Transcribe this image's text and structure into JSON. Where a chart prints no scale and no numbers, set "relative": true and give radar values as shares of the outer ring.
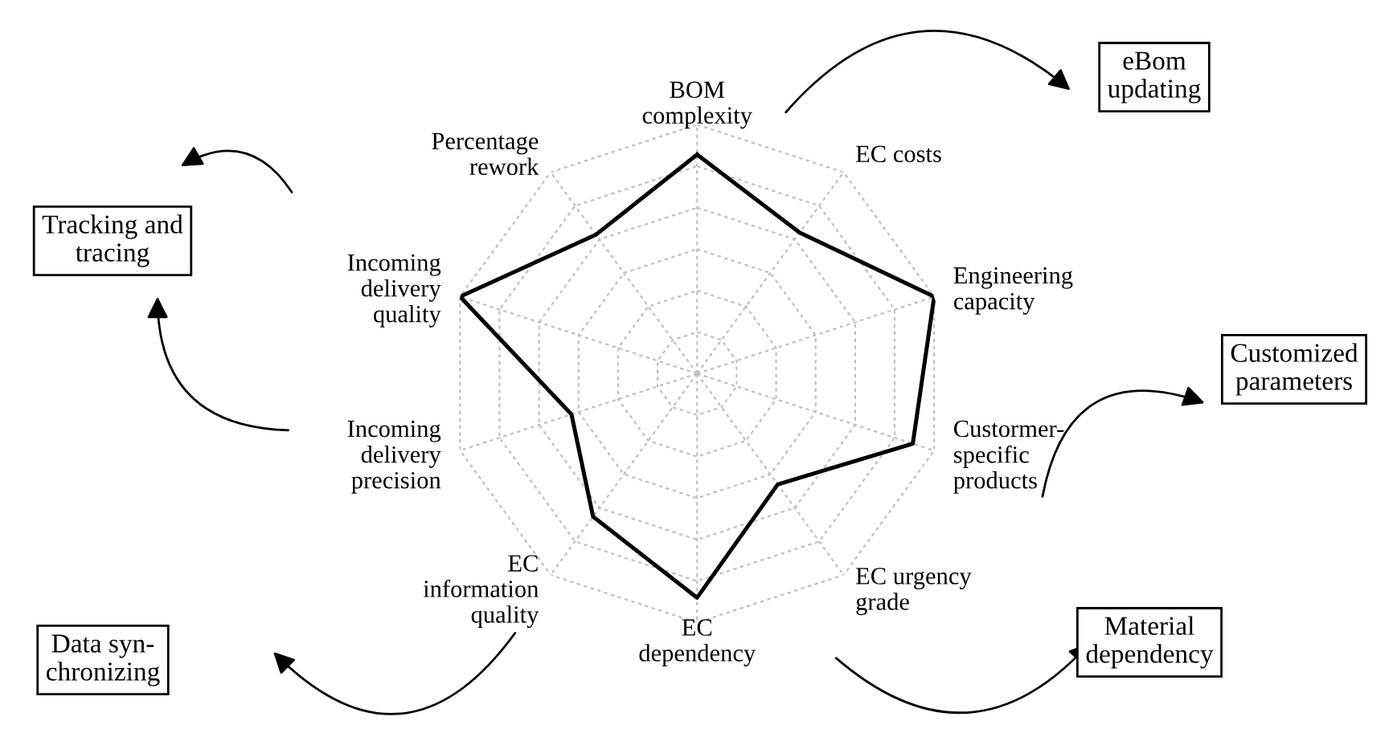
{
  "chart_data": {
    "type": "radar",
    "relative": true,
    "grid": true,
    "categories": [
      "BOM\ncomplexity",
      "EC costs",
      "Engineering\ncapacity",
      "Custormer-\nspecific\nproducts",
      "EC urgency\ngrade",
      "EC\ndependency",
      "EC\ninformation\nquality",
      "Incoming\ndelivery\nprecision",
      "Incoming\ndelivery\nquality",
      "Percentage\nrework"
    ],
    "series": [
      {
        "color": "#000000",
        "values": [
          0.88,
          0.7,
          1.0,
          0.91,
          0.55,
          0.9,
          0.71,
          0.53,
          1.0,
          0.69
        ]
      }
    ],
    "annotations": [
      "eBom\nupdating",
      "Tracking and\ntracing",
      "Customized\nparameters",
      "Data syn-\nchronizing",
      "Material\ndependency"
    ]
  }
}
